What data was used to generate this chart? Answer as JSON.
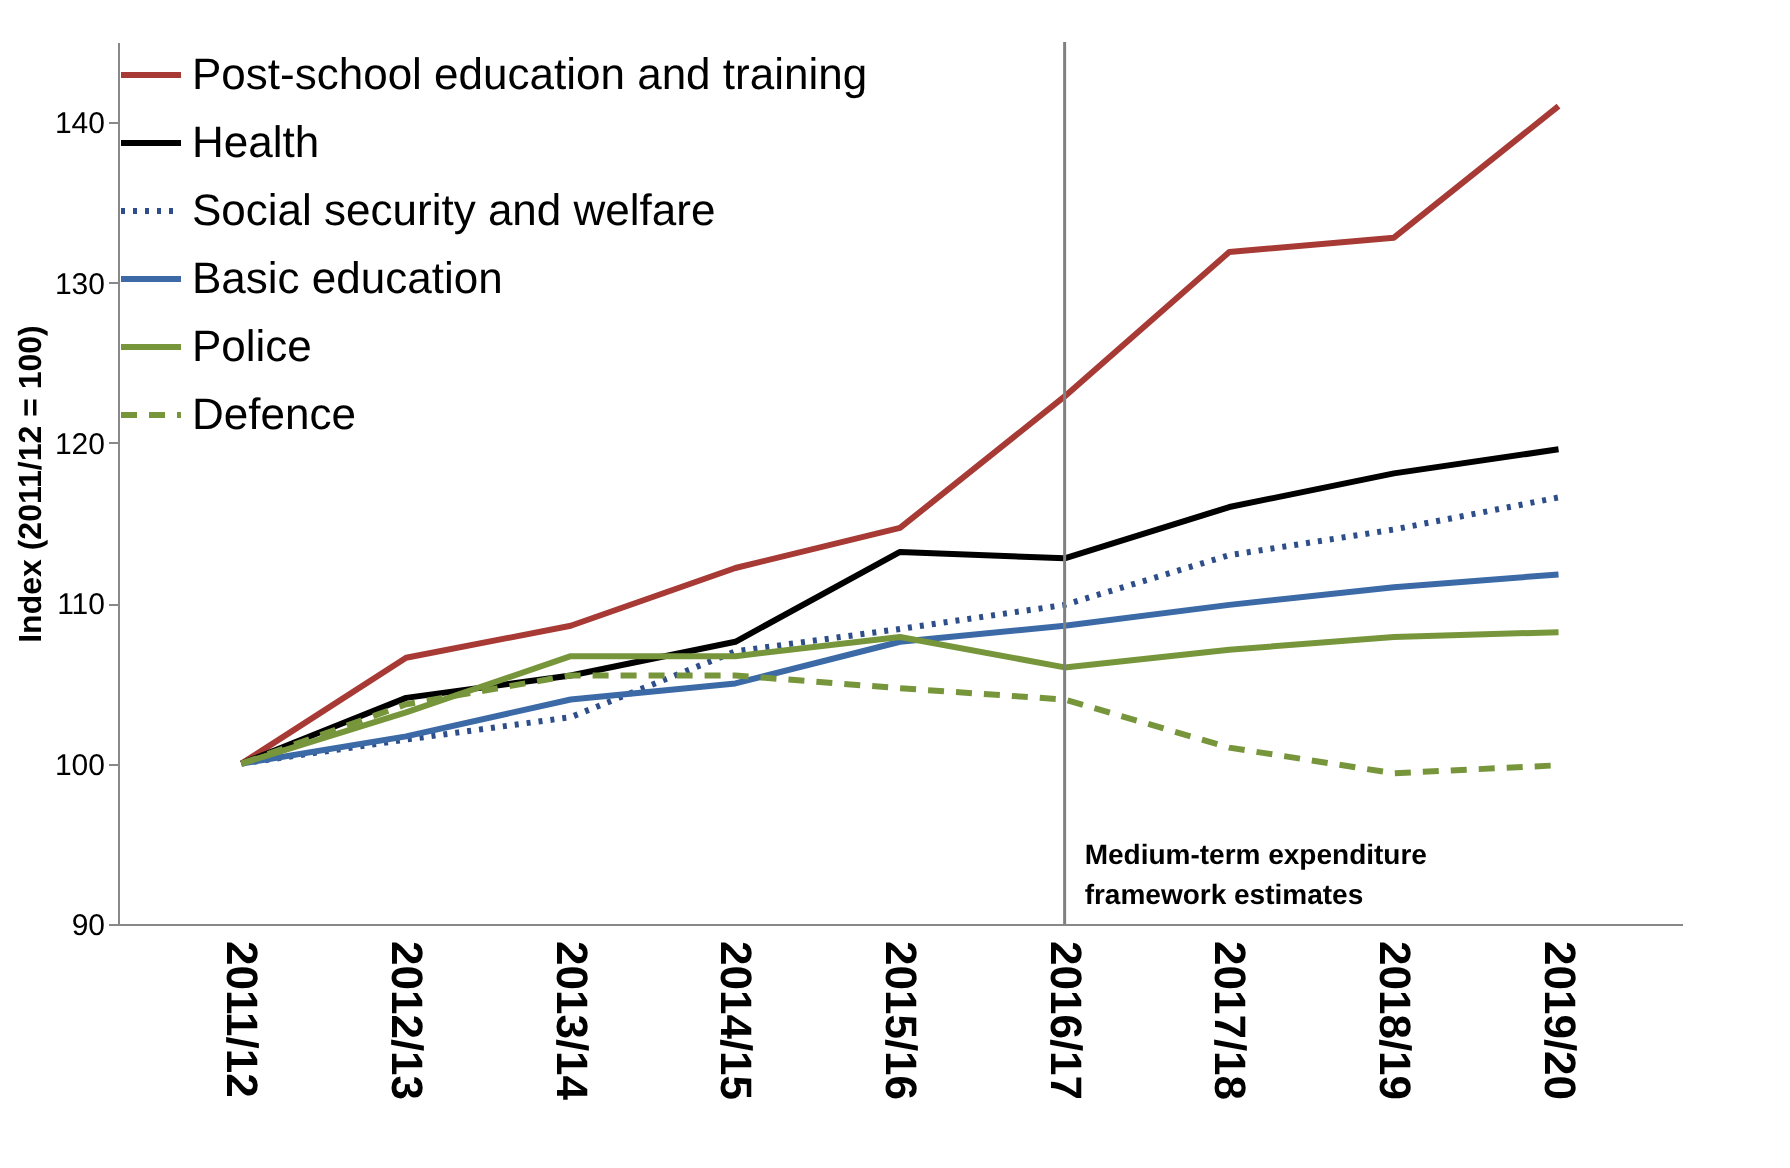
{
  "chart_data": {
    "type": "line",
    "ylabel": "Index (2011/12 = 100)",
    "categories": [
      "2011/12",
      "2012/13",
      "2013/14",
      "2014/15",
      "2015/16",
      "2016/17",
      "2017/18",
      "2018/19",
      "2019/20"
    ],
    "series": [
      {
        "name": "Post-school education and training",
        "color": "#a83a35",
        "line_style": "solid",
        "values": [
          100,
          106.6,
          108.6,
          112.2,
          114.7,
          122.9,
          131.9,
          132.8,
          141.0
        ]
      },
      {
        "name": "Health",
        "color": "#000000",
        "line_style": "solid",
        "values": [
          100,
          104.1,
          105.5,
          107.6,
          113.2,
          112.8,
          116.0,
          118.1,
          119.6
        ]
      },
      {
        "name": "Social security and welfare",
        "color": "#2e4e8a",
        "line_style": "dotted",
        "values": [
          100,
          101.5,
          102.9,
          107.0,
          108.4,
          109.9,
          113.0,
          114.6,
          116.6
        ]
      },
      {
        "name": "Basic education",
        "color": "#3c6aa7",
        "line_style": "solid",
        "values": [
          100,
          101.7,
          104.0,
          105.0,
          107.6,
          108.6,
          109.9,
          111.0,
          111.8
        ]
      },
      {
        "name": "Police",
        "color": "#77963c",
        "line_style": "solid",
        "values": [
          100,
          103.2,
          106.7,
          106.7,
          107.9,
          106.0,
          107.1,
          107.9,
          108.2
        ]
      },
      {
        "name": "Defence",
        "color": "#77963c",
        "line_style": "dashed",
        "values": [
          100,
          103.7,
          105.5,
          105.5,
          104.7,
          104.0,
          101.0,
          99.4,
          99.9
        ]
      }
    ],
    "ylim": [
      90,
      145
    ],
    "yticks": [
      90,
      100,
      110,
      120,
      130,
      140
    ],
    "grid": false,
    "legend": "top left",
    "marker": "none",
    "ref_lines": [
      {
        "axis": "x",
        "value": "2016/17",
        "label": "Medium-term expenditure framework estimates",
        "color": "#808080"
      }
    ]
  }
}
